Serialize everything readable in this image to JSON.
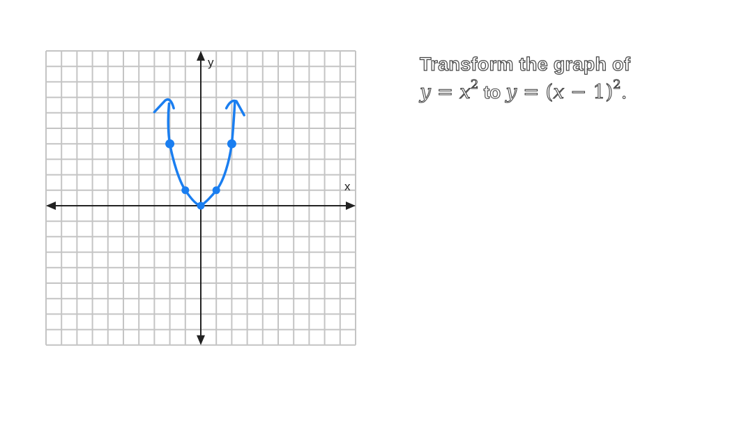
{
  "graph": {
    "x_axis_label": "x",
    "y_axis_label": "y",
    "grid_cols": 20,
    "grid_rows": 19,
    "origin_col": 10,
    "origin_row": 10,
    "curve_color": "#1a7ef0",
    "grid_color": "#c4c4c4",
    "axis_color": "#222222",
    "plotted_points": [
      {
        "x": -2,
        "y": 4
      },
      {
        "x": -1,
        "y": 1
      },
      {
        "x": 0,
        "y": 0
      },
      {
        "x": 1,
        "y": 1
      },
      {
        "x": 2,
        "y": 4
      }
    ]
  },
  "prompt": {
    "line1": "Transform the graph of",
    "eq1_y": "y",
    "eq1_eq": " = ",
    "eq1_x": "x",
    "eq1_exp": "2",
    "connector": " to ",
    "eq2_y": "y",
    "eq2_rhs": " = (",
    "eq2_x": "x",
    "eq2_tail": " − 1)",
    "eq2_exp": "2",
    "period": "."
  }
}
